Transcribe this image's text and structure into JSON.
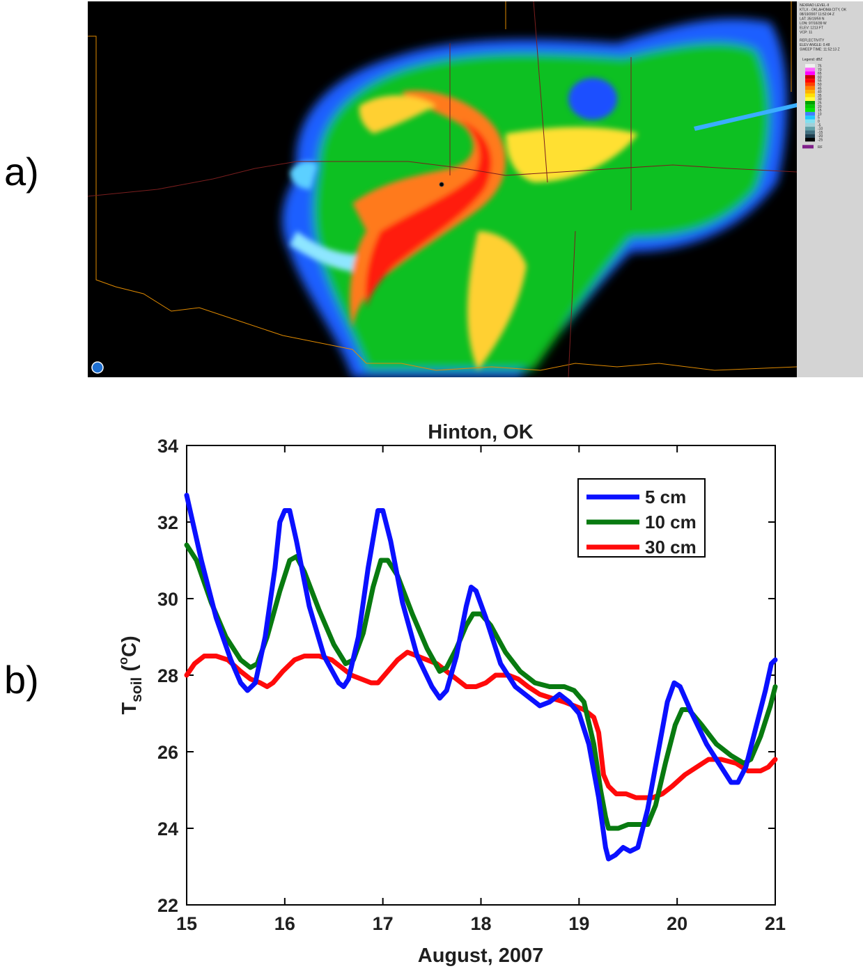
{
  "panels": {
    "a_label": "a)",
    "b_label": "b)"
  },
  "radar": {
    "header_lines": [
      "NEXRAD LEVEL-II",
      "KTLX - OKLAHOMA CITY, OK",
      "08/19/2007 11:52:04 Z",
      "LAT: 35/19/59 N",
      "LON: 97/16/39 W",
      "ELEV: 1213 FT",
      "VCP: 11"
    ],
    "product_lines": [
      "REFLECTIVITY",
      "ELEV ANGLE: 0.48",
      "SWEEP TIME: 11:52:13 Z"
    ],
    "legend_title": "Legend: dBZ",
    "legend_values": [
      "75",
      "70",
      "65",
      "60",
      "55",
      "50",
      "45",
      "40",
      "35",
      "30",
      "25",
      "20",
      "15",
      "10",
      "5",
      "0",
      "-5",
      "-10",
      "-15",
      "-20",
      "-25"
    ],
    "legend_colors": [
      "#f0f0f0",
      "#ff66ff",
      "#ff00ff",
      "#c80000",
      "#ff0000",
      "#ff4000",
      "#ff8000",
      "#ffb000",
      "#ffe000",
      "#ffff40",
      "#00a000",
      "#00c800",
      "#00e600",
      "#4080ff",
      "#1ec8ff",
      "#80e0f0",
      "#a0d0d8",
      "#60a0a8",
      "#407080",
      "#204050",
      "#000000"
    ],
    "rf_label": "RF",
    "rf_color": "#80208a",
    "colors": {
      "background": "#000000",
      "sidebar": "#d4d4d4",
      "state_border": "#e08a00",
      "county_border": "#7a1e1e"
    }
  },
  "chart_data": {
    "type": "line",
    "title": "Hinton, OK",
    "xlabel": "August, 2007",
    "ylabel_main": "T",
    "ylabel_sub": "soil",
    "ylabel_unit": " (°C)",
    "unit_degree": "o",
    "unit_letter": "C",
    "xlim": [
      15,
      21
    ],
    "ylim": [
      22,
      34
    ],
    "xticks": [
      "15",
      "16",
      "17",
      "18",
      "19",
      "20",
      "21"
    ],
    "yticks": [
      "22",
      "24",
      "26",
      "28",
      "30",
      "32",
      "34"
    ],
    "grid": false,
    "legend_position": "top-right",
    "series": [
      {
        "name": "5 cm",
        "color": "#0a10ff",
        "points": [
          [
            15.0,
            32.7
          ],
          [
            15.15,
            31.0
          ],
          [
            15.3,
            29.5
          ],
          [
            15.45,
            28.4
          ],
          [
            15.55,
            27.8
          ],
          [
            15.62,
            27.6
          ],
          [
            15.7,
            27.8
          ],
          [
            15.8,
            29.0
          ],
          [
            15.9,
            30.8
          ],
          [
            15.95,
            32.0
          ],
          [
            16.0,
            32.3
          ],
          [
            16.05,
            32.3
          ],
          [
            16.12,
            31.5
          ],
          [
            16.25,
            29.8
          ],
          [
            16.4,
            28.5
          ],
          [
            16.55,
            27.8
          ],
          [
            16.6,
            27.7
          ],
          [
            16.65,
            27.9
          ],
          [
            16.75,
            29.0
          ],
          [
            16.85,
            30.8
          ],
          [
            16.95,
            32.3
          ],
          [
            17.0,
            32.3
          ],
          [
            17.08,
            31.5
          ],
          [
            17.2,
            29.9
          ],
          [
            17.35,
            28.5
          ],
          [
            17.5,
            27.7
          ],
          [
            17.58,
            27.4
          ],
          [
            17.65,
            27.6
          ],
          [
            17.75,
            28.5
          ],
          [
            17.85,
            29.8
          ],
          [
            17.9,
            30.3
          ],
          [
            17.95,
            30.2
          ],
          [
            18.05,
            29.5
          ],
          [
            18.2,
            28.3
          ],
          [
            18.35,
            27.7
          ],
          [
            18.5,
            27.4
          ],
          [
            18.6,
            27.2
          ],
          [
            18.7,
            27.3
          ],
          [
            18.8,
            27.5
          ],
          [
            18.9,
            27.3
          ],
          [
            19.0,
            27.0
          ],
          [
            19.1,
            26.2
          ],
          [
            19.2,
            24.8
          ],
          [
            19.27,
            23.5
          ],
          [
            19.3,
            23.2
          ],
          [
            19.37,
            23.3
          ],
          [
            19.45,
            23.5
          ],
          [
            19.52,
            23.4
          ],
          [
            19.6,
            23.5
          ],
          [
            19.7,
            24.5
          ],
          [
            19.8,
            25.9
          ],
          [
            19.9,
            27.3
          ],
          [
            19.97,
            27.8
          ],
          [
            20.03,
            27.7
          ],
          [
            20.15,
            27.0
          ],
          [
            20.3,
            26.2
          ],
          [
            20.45,
            25.6
          ],
          [
            20.55,
            25.2
          ],
          [
            20.62,
            25.2
          ],
          [
            20.7,
            25.6
          ],
          [
            20.8,
            26.6
          ],
          [
            20.9,
            27.6
          ],
          [
            20.96,
            28.3
          ],
          [
            21.0,
            28.4
          ]
        ]
      },
      {
        "name": "10 cm",
        "color": "#087a10",
        "points": [
          [
            15.0,
            31.4
          ],
          [
            15.1,
            31.0
          ],
          [
            15.25,
            29.9
          ],
          [
            15.4,
            29.0
          ],
          [
            15.55,
            28.4
          ],
          [
            15.65,
            28.2
          ],
          [
            15.72,
            28.3
          ],
          [
            15.82,
            29.0
          ],
          [
            15.95,
            30.2
          ],
          [
            16.05,
            31.0
          ],
          [
            16.12,
            31.1
          ],
          [
            16.2,
            30.7
          ],
          [
            16.35,
            29.7
          ],
          [
            16.5,
            28.8
          ],
          [
            16.62,
            28.3
          ],
          [
            16.7,
            28.4
          ],
          [
            16.8,
            29.1
          ],
          [
            16.9,
            30.3
          ],
          [
            16.98,
            31.0
          ],
          [
            17.05,
            31.0
          ],
          [
            17.15,
            30.6
          ],
          [
            17.3,
            29.6
          ],
          [
            17.45,
            28.7
          ],
          [
            17.58,
            28.1
          ],
          [
            17.65,
            28.2
          ],
          [
            17.75,
            28.7
          ],
          [
            17.85,
            29.3
          ],
          [
            17.92,
            29.6
          ],
          [
            18.0,
            29.6
          ],
          [
            18.1,
            29.3
          ],
          [
            18.25,
            28.6
          ],
          [
            18.4,
            28.1
          ],
          [
            18.55,
            27.8
          ],
          [
            18.7,
            27.7
          ],
          [
            18.85,
            27.7
          ],
          [
            18.95,
            27.6
          ],
          [
            19.05,
            27.3
          ],
          [
            19.15,
            26.2
          ],
          [
            19.22,
            25.0
          ],
          [
            19.27,
            24.3
          ],
          [
            19.3,
            24.0
          ],
          [
            19.4,
            24.0
          ],
          [
            19.5,
            24.1
          ],
          [
            19.7,
            24.1
          ],
          [
            19.78,
            24.6
          ],
          [
            19.88,
            25.7
          ],
          [
            19.98,
            26.7
          ],
          [
            20.05,
            27.1
          ],
          [
            20.12,
            27.1
          ],
          [
            20.25,
            26.7
          ],
          [
            20.4,
            26.2
          ],
          [
            20.55,
            25.9
          ],
          [
            20.68,
            25.7
          ],
          [
            20.75,
            25.8
          ],
          [
            20.85,
            26.4
          ],
          [
            20.95,
            27.2
          ],
          [
            21.0,
            27.7
          ]
        ]
      },
      {
        "name": "30 cm",
        "color": "#ff0a0a",
        "points": [
          [
            15.0,
            28.0
          ],
          [
            15.08,
            28.3
          ],
          [
            15.18,
            28.5
          ],
          [
            15.3,
            28.5
          ],
          [
            15.42,
            28.4
          ],
          [
            15.55,
            28.1
          ],
          [
            15.65,
            27.9
          ],
          [
            15.75,
            27.8
          ],
          [
            15.82,
            27.7
          ],
          [
            15.88,
            27.8
          ],
          [
            15.98,
            28.1
          ],
          [
            16.1,
            28.4
          ],
          [
            16.2,
            28.5
          ],
          [
            16.35,
            28.5
          ],
          [
            16.48,
            28.4
          ],
          [
            16.58,
            28.2
          ],
          [
            16.68,
            28.0
          ],
          [
            16.78,
            27.9
          ],
          [
            16.88,
            27.8
          ],
          [
            16.95,
            27.8
          ],
          [
            17.05,
            28.1
          ],
          [
            17.15,
            28.4
          ],
          [
            17.25,
            28.6
          ],
          [
            17.35,
            28.5
          ],
          [
            17.45,
            28.4
          ],
          [
            17.55,
            28.3
          ],
          [
            17.65,
            28.1
          ],
          [
            17.75,
            27.9
          ],
          [
            17.85,
            27.7
          ],
          [
            17.95,
            27.7
          ],
          [
            18.05,
            27.8
          ],
          [
            18.15,
            28.0
          ],
          [
            18.28,
            28.0
          ],
          [
            18.38,
            27.9
          ],
          [
            18.48,
            27.7
          ],
          [
            18.6,
            27.5
          ],
          [
            18.72,
            27.4
          ],
          [
            18.85,
            27.3
          ],
          [
            18.95,
            27.2
          ],
          [
            19.05,
            27.1
          ],
          [
            19.15,
            26.9
          ],
          [
            19.2,
            26.5
          ],
          [
            19.25,
            25.4
          ],
          [
            19.3,
            25.1
          ],
          [
            19.38,
            24.9
          ],
          [
            19.48,
            24.9
          ],
          [
            19.58,
            24.8
          ],
          [
            19.75,
            24.8
          ],
          [
            19.85,
            24.9
          ],
          [
            19.95,
            25.1
          ],
          [
            20.08,
            25.4
          ],
          [
            20.2,
            25.6
          ],
          [
            20.32,
            25.8
          ],
          [
            20.45,
            25.8
          ],
          [
            20.6,
            25.7
          ],
          [
            20.72,
            25.5
          ],
          [
            20.85,
            25.5
          ],
          [
            20.93,
            25.6
          ],
          [
            21.0,
            25.8
          ]
        ]
      }
    ]
  }
}
